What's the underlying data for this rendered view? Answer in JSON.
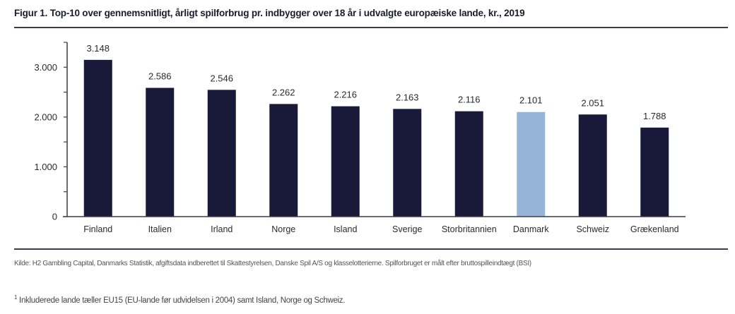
{
  "figure": {
    "title": "Figur 1. Top-10 over gennemsnitligt, årligt spilforbrug pr. indbygger over 18 år i udvalgte europæiske lande, kr., 2019",
    "source": "Kilde: H2 Gambling Capital, Danmarks Statistik, afgiftsdata indberettet til Skattestyrelsen, Danske Spil A/S og klasselotterierne.  Spilforbruget er målt efter bruttospilleindtægt (BSI)",
    "footnote_marker": "1",
    "footnote": " Inkluderede lande tæller EU15 (EU-lande før udvidelsen i 2004) samt Island, Norge og Schweiz."
  },
  "chart_data": {
    "type": "bar",
    "title": "Figur 1. Top-10 over gennemsnitligt, årligt spilforbrug pr. indbygger over 18 år i udvalgte europæiske lande, kr., 2019",
    "xlabel": "",
    "ylabel": "",
    "ylim": [
      0,
      3500
    ],
    "yticks": [
      0,
      1000,
      2000,
      3000
    ],
    "ytick_labels": [
      "0",
      "1.000",
      "2.000",
      "3.000"
    ],
    "minor_yticks": [
      500,
      1500,
      2500,
      3500
    ],
    "grid": false,
    "legend": "none",
    "categories": [
      "Finland",
      "Italien",
      "Irland",
      "Norge",
      "Island",
      "Sverige",
      "Storbritannien",
      "Danmark",
      "Schweiz",
      "Grækenland"
    ],
    "values": [
      3148,
      2586,
      2546,
      2262,
      2216,
      2163,
      2116,
      2101,
      2051,
      1788
    ],
    "data_labels": [
      "3.148",
      "2.586",
      "2.546",
      "2.262",
      "2.216",
      "2.163",
      "2.116",
      "2.101",
      "2.051",
      "1.788"
    ],
    "highlight_category": "Danmark",
    "colors": {
      "default": "#19193a",
      "highlight": "#95b4d8",
      "axis": "#3c3c4a"
    }
  }
}
